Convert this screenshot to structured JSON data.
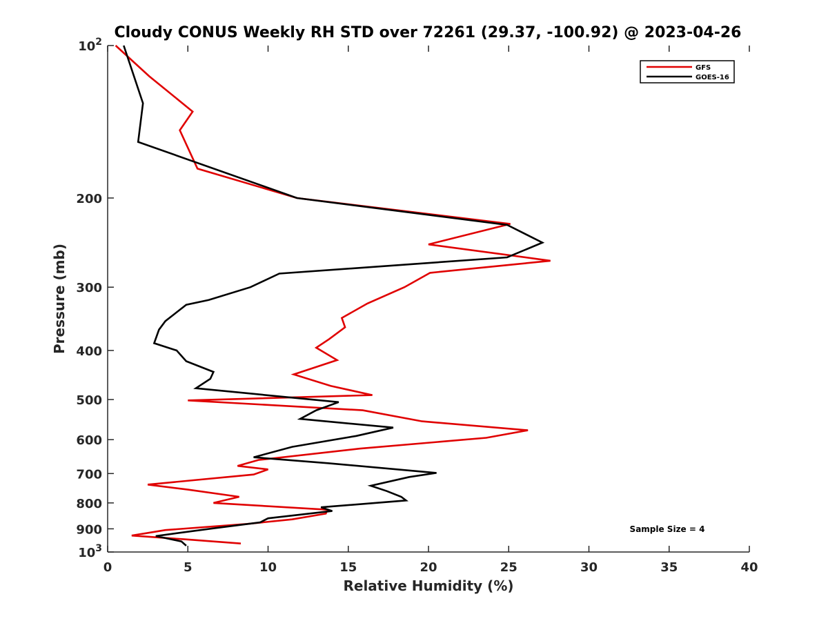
{
  "chart_data": {
    "type": "line",
    "title": "Cloudy CONUS Weekly RH STD over 72261 (29.37, -100.92) @ 2023-04-26",
    "xlabel": "Relative Humidity (%)",
    "ylabel": "Pressure (mb)",
    "xlim": [
      0,
      40
    ],
    "ylim": [
      100,
      1000
    ],
    "y_scale": "log",
    "y_reversed": true,
    "x_ticks": [
      "0",
      "5",
      "10",
      "15",
      "20",
      "25",
      "30",
      "35",
      "40"
    ],
    "y_ticks": [
      {
        "value": 100,
        "base": "10",
        "exp": "2"
      },
      {
        "value": 200,
        "label": "200"
      },
      {
        "value": 300,
        "label": "300"
      },
      {
        "value": 400,
        "label": "400"
      },
      {
        "value": 500,
        "label": "500"
      },
      {
        "value": 600,
        "label": "600"
      },
      {
        "value": 700,
        "label": "700"
      },
      {
        "value": 800,
        "label": "800"
      },
      {
        "value": 900,
        "label": "900"
      },
      {
        "value": 1000,
        "base": "10",
        "exp": "3"
      }
    ],
    "grid": false,
    "legend_position": "top-right",
    "annotation": "Sample Size = 4",
    "series": [
      {
        "name": "GFS",
        "color": "#e00000",
        "points": [
          [
            0.5,
            100
          ],
          [
            2.6,
            115
          ],
          [
            5.3,
            135
          ],
          [
            4.5,
            147
          ],
          [
            5.6,
            175
          ],
          [
            11.8,
            200
          ],
          [
            25.1,
            225
          ],
          [
            20.0,
            247
          ],
          [
            27.6,
            266
          ],
          [
            20.1,
            281
          ],
          [
            18.5,
            300
          ],
          [
            16.2,
            323
          ],
          [
            14.6,
            345
          ],
          [
            14.8,
            360
          ],
          [
            13.8,
            380
          ],
          [
            13.0,
            395
          ],
          [
            14.3,
            418
          ],
          [
            11.6,
            446
          ],
          [
            13.9,
            470
          ],
          [
            16.5,
            490
          ],
          [
            5.0,
            502
          ],
          [
            15.9,
            525
          ],
          [
            19.6,
            552
          ],
          [
            26.2,
            575
          ],
          [
            23.6,
            595
          ],
          [
            15.7,
            625
          ],
          [
            9.4,
            658
          ],
          [
            8.1,
            676
          ],
          [
            10.0,
            687
          ],
          [
            9.1,
            703
          ],
          [
            2.5,
            736
          ],
          [
            5.0,
            753
          ],
          [
            8.2,
            778
          ],
          [
            6.6,
            800
          ],
          [
            13.7,
            825
          ],
          [
            13.6,
            840
          ],
          [
            11.5,
            862
          ],
          [
            8.7,
            880
          ],
          [
            3.6,
            905
          ],
          [
            1.5,
            928
          ],
          [
            4.8,
            944
          ],
          [
            8.3,
            962
          ]
        ]
      },
      {
        "name": "GOES-16",
        "color": "#000000",
        "points": [
          [
            1.0,
            100
          ],
          [
            2.2,
            130
          ],
          [
            1.9,
            155
          ],
          [
            11.8,
            200
          ],
          [
            24.9,
            226
          ],
          [
            27.1,
            245
          ],
          [
            24.9,
            262
          ],
          [
            10.7,
            282
          ],
          [
            8.9,
            300
          ],
          [
            6.3,
            318
          ],
          [
            4.9,
            325
          ],
          [
            3.6,
            350
          ],
          [
            3.2,
            364
          ],
          [
            2.9,
            387
          ],
          [
            4.3,
            400
          ],
          [
            4.9,
            420
          ],
          [
            6.6,
            441
          ],
          [
            6.4,
            455
          ],
          [
            5.5,
            475
          ],
          [
            14.4,
            506
          ],
          [
            13.0,
            525
          ],
          [
            12.0,
            546
          ],
          [
            17.8,
            568
          ],
          [
            15.5,
            590
          ],
          [
            11.5,
            620
          ],
          [
            9.1,
            650
          ],
          [
            13.8,
            668
          ],
          [
            20.5,
            698
          ],
          [
            18.8,
            711
          ],
          [
            16.4,
            740
          ],
          [
            17.4,
            758
          ],
          [
            18.3,
            778
          ],
          [
            18.6,
            791
          ],
          [
            13.3,
            816
          ],
          [
            14.0,
            830
          ],
          [
            10.0,
            858
          ],
          [
            9.5,
            874
          ],
          [
            6.6,
            898
          ],
          [
            3.0,
            930
          ],
          [
            4.6,
            953
          ],
          [
            4.9,
            972
          ]
        ]
      }
    ]
  }
}
